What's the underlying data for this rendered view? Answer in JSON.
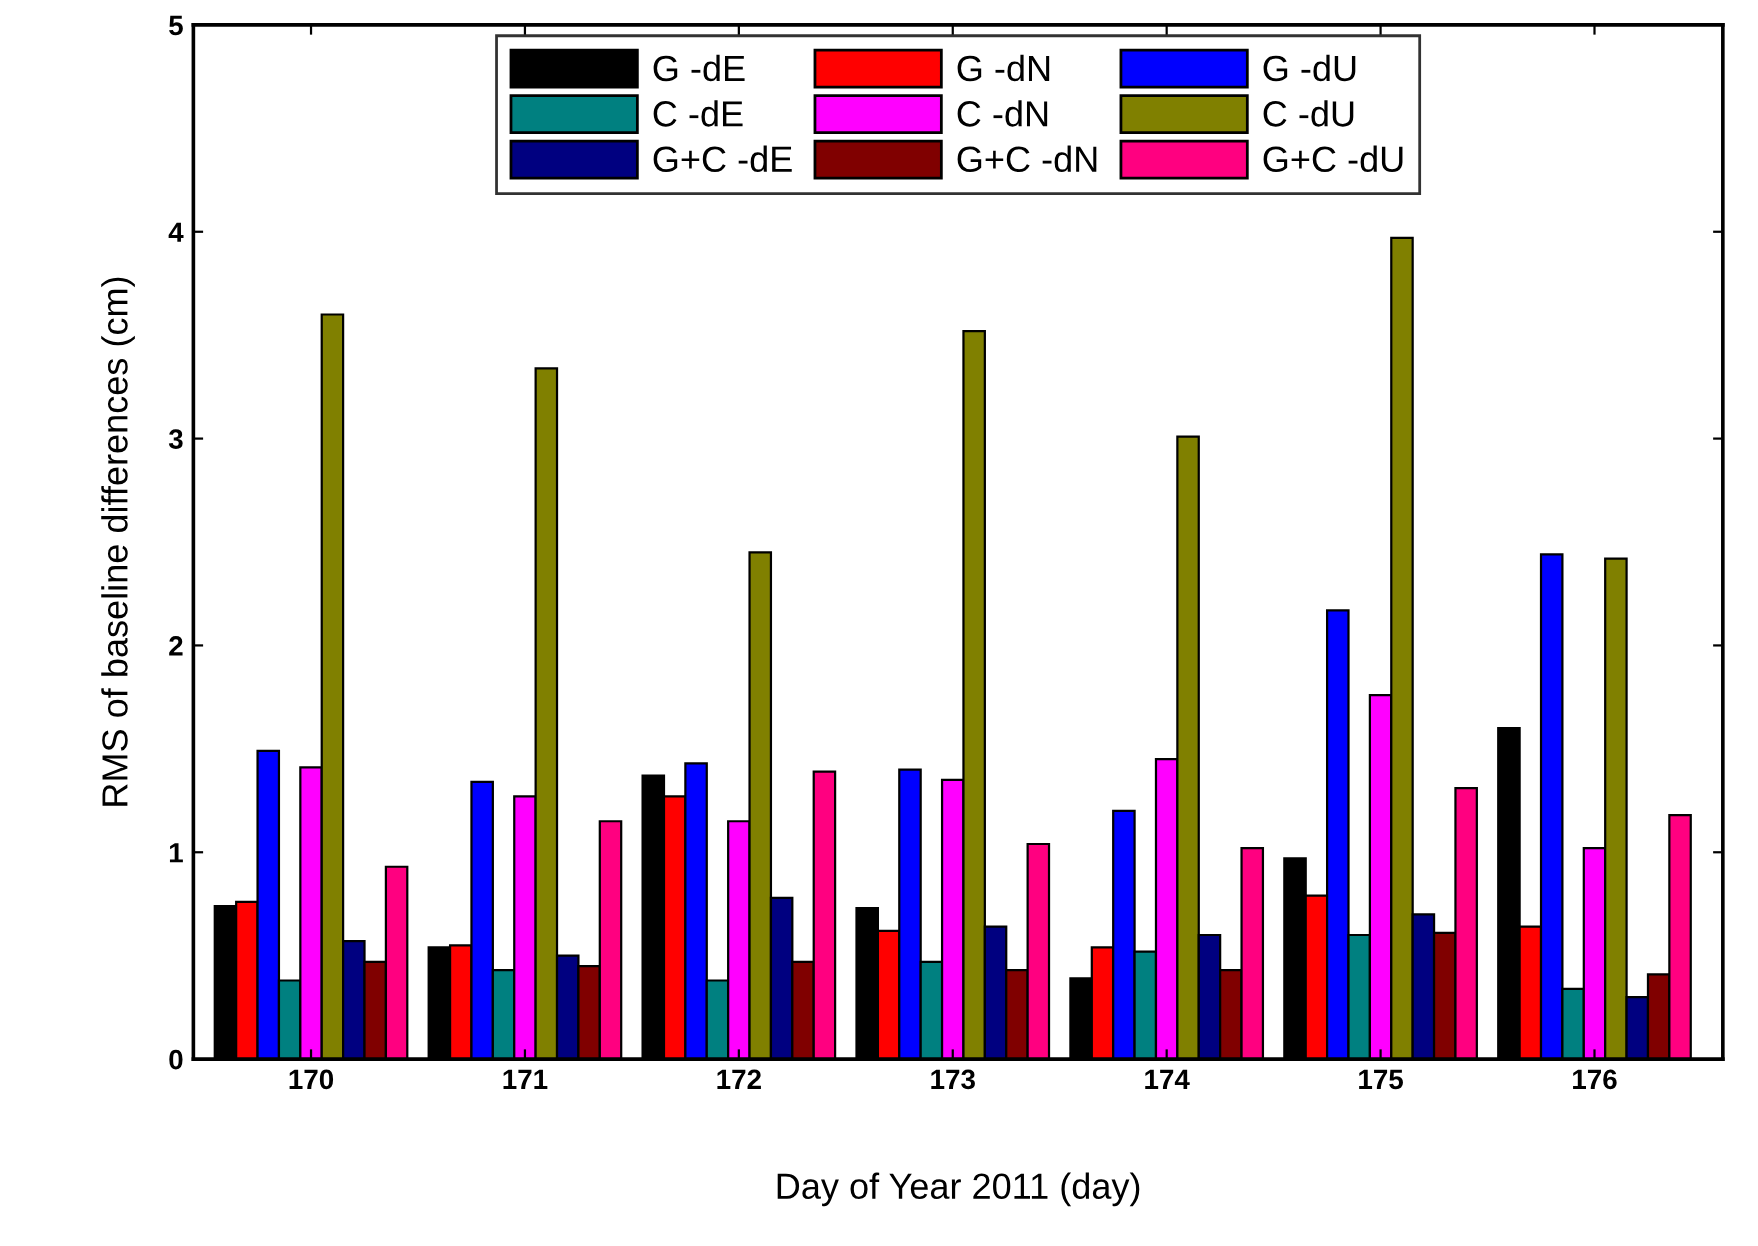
{
  "chart_data": {
    "type": "bar",
    "xlabel": "Day of Year 2011 (day)",
    "ylabel": "RMS of baseline differences (cm)",
    "categories": [
      "170",
      "171",
      "172",
      "173",
      "174",
      "175",
      "176"
    ],
    "series": [
      {
        "name": "G -dE",
        "color": "#000000",
        "values": [
          0.74,
          0.54,
          1.37,
          0.73,
          0.39,
          0.97,
          1.6
        ]
      },
      {
        "name": "G -dN",
        "color": "#ff0000",
        "values": [
          0.76,
          0.55,
          1.27,
          0.62,
          0.54,
          0.79,
          0.64
        ]
      },
      {
        "name": "G -dU",
        "color": "#0000ff",
        "values": [
          1.49,
          1.34,
          1.43,
          1.4,
          1.2,
          2.17,
          2.44
        ]
      },
      {
        "name": "C -dE",
        "color": "#008080",
        "values": [
          0.38,
          0.43,
          0.38,
          0.47,
          0.52,
          0.6,
          0.34
        ]
      },
      {
        "name": "C -dN",
        "color": "#ff00ff",
        "values": [
          1.41,
          1.27,
          1.15,
          1.35,
          1.45,
          1.76,
          1.02
        ]
      },
      {
        "name": "C -dU",
        "color": "#808000",
        "values": [
          3.6,
          3.34,
          2.45,
          3.52,
          3.01,
          3.97,
          2.42
        ]
      },
      {
        "name": "G+C -dE",
        "color": "#000080",
        "values": [
          0.57,
          0.5,
          0.78,
          0.64,
          0.6,
          0.7,
          0.3
        ]
      },
      {
        "name": "G+C -dN",
        "color": "#800000",
        "values": [
          0.47,
          0.45,
          0.47,
          0.43,
          0.43,
          0.61,
          0.41
        ]
      },
      {
        "name": "G+C -dU",
        "color": "#ff0080",
        "values": [
          0.93,
          1.15,
          1.39,
          1.04,
          1.02,
          1.31,
          1.18
        ]
      }
    ],
    "ylim": [
      0,
      5
    ],
    "yticks": [
      0,
      1,
      2,
      3,
      4,
      5
    ],
    "legend": "top",
    "grid": false
  }
}
